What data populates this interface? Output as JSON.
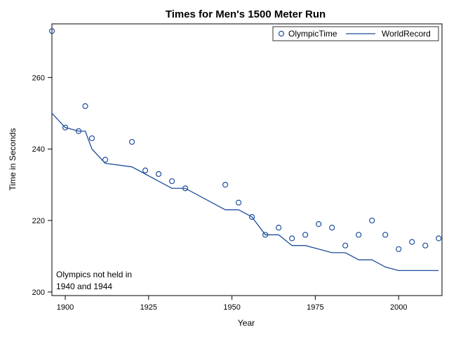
{
  "chart_data": {
    "type": "scatter",
    "title": "Times for Men's 1500 Meter Run",
    "xlabel": "Year",
    "ylabel": "Time in Seconds",
    "xlim": [
      1896,
      2013
    ],
    "ylim": [
      199,
      275
    ],
    "x_ticks": [
      1900,
      1925,
      1950,
      1975,
      2000
    ],
    "y_ticks": [
      200,
      220,
      240,
      260
    ],
    "grid": false,
    "legend_position": "top-right",
    "annotation": [
      "Olympics not held in",
      "1940 and 1944"
    ],
    "colors": {
      "series": "#1f4e9c",
      "axis": "#000000"
    },
    "series": [
      {
        "name": "OlympicTime",
        "kind": "scatter",
        "marker": "circle-open",
        "x": [
          1896,
          1900,
          1904,
          1906,
          1908,
          1912,
          1920,
          1924,
          1928,
          1932,
          1936,
          1948,
          1952,
          1956,
          1960,
          1964,
          1968,
          1972,
          1976,
          1980,
          1984,
          1988,
          1992,
          1996,
          2000,
          2004,
          2008,
          2012
        ],
        "y": [
          273,
          246,
          245,
          252,
          243,
          237,
          242,
          234,
          233,
          231,
          229,
          230,
          225,
          221,
          216,
          218,
          215,
          216,
          219,
          218,
          213,
          216,
          220,
          216,
          212,
          214,
          213,
          215
        ]
      },
      {
        "name": "WorldRecord",
        "kind": "line",
        "x": [
          1896,
          1900,
          1904,
          1906,
          1908,
          1912,
          1920,
          1924,
          1928,
          1932,
          1936,
          1948,
          1952,
          1956,
          1960,
          1964,
          1968,
          1972,
          1976,
          1980,
          1984,
          1988,
          1992,
          1996,
          2000,
          2004,
          2008,
          2012
        ],
        "y": [
          250,
          246,
          245,
          245,
          240,
          236,
          235,
          233,
          231,
          229,
          229,
          223,
          223,
          221,
          216,
          216,
          213,
          213,
          212,
          211,
          211,
          209,
          209,
          207,
          206,
          206,
          206,
          206
        ]
      }
    ]
  }
}
